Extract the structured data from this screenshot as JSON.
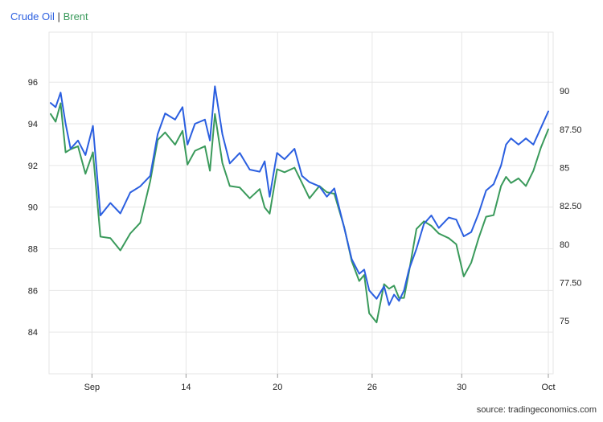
{
  "legend": {
    "series_a": "Crude Oil",
    "separator": "|",
    "series_b": "Brent"
  },
  "source": "source: tradingeconomics.com",
  "chart_data": {
    "type": "line",
    "title": "",
    "xlabel": "",
    "ylabel": "",
    "grid": true,
    "legend_position": "top-left",
    "x_ticks": [
      "Sep",
      "14",
      "20",
      "26",
      "30",
      "Oct"
    ],
    "x_tick_positions": [
      0.083,
      0.272,
      0.456,
      0.646,
      0.826,
      1.0
    ],
    "x_range": [
      0,
      1
    ],
    "y_left": {
      "min": 82.0,
      "max": 98.4,
      "ticks": [
        84,
        86,
        88,
        90,
        92,
        94,
        96
      ],
      "labels": [
        "84",
        "86",
        "88",
        "90",
        "92",
        "94",
        "96"
      ]
    },
    "y_right": {
      "min": 71.55,
      "max": 93.84,
      "ticks": [
        75,
        77.5,
        80,
        82.5,
        85,
        87.5,
        90
      ],
      "labels": [
        "75",
        "77.50",
        "80",
        "82.50",
        "85",
        "87.50",
        "90"
      ]
    },
    "series": [
      {
        "name": "Crude Oil",
        "axis": "left",
        "color": "#2b5fe0",
        "x": [
          0,
          0.01,
          0.02,
          0.03,
          0.04,
          0.055,
          0.07,
          0.085,
          0.1,
          0.12,
          0.14,
          0.16,
          0.18,
          0.2,
          0.215,
          0.23,
          0.25,
          0.265,
          0.275,
          0.29,
          0.31,
          0.32,
          0.33,
          0.345,
          0.36,
          0.38,
          0.4,
          0.42,
          0.43,
          0.44,
          0.455,
          0.47,
          0.49,
          0.505,
          0.52,
          0.54,
          0.555,
          0.57,
          0.59,
          0.605,
          0.62,
          0.63,
          0.64,
          0.655,
          0.67,
          0.68,
          0.69,
          0.7,
          0.71,
          0.72,
          0.735,
          0.75,
          0.765,
          0.78,
          0.8,
          0.815,
          0.83,
          0.845,
          0.86,
          0.875,
          0.89,
          0.905,
          0.915,
          0.925,
          0.94,
          0.955,
          0.97,
          0.985,
          1.0
        ],
        "values": [
          95.0,
          94.8,
          95.5,
          94.0,
          92.8,
          93.2,
          92.5,
          93.9,
          89.6,
          90.2,
          89.7,
          90.7,
          91.0,
          91.5,
          93.5,
          94.5,
          94.2,
          94.8,
          93.0,
          94.0,
          94.2,
          93.2,
          95.8,
          93.5,
          92.1,
          92.6,
          91.8,
          91.7,
          92.2,
          90.5,
          92.6,
          92.3,
          92.8,
          91.5,
          91.2,
          91.0,
          90.5,
          90.9,
          89.0,
          87.5,
          86.8,
          87.0,
          86.0,
          85.6,
          86.2,
          85.3,
          85.8,
          85.5,
          86.0,
          87.0,
          88.0,
          89.2,
          89.6,
          89.0,
          89.5,
          89.4,
          88.6,
          88.8,
          89.7,
          90.8,
          91.1,
          92.0,
          93.0,
          93.3,
          93.0,
          93.3,
          93.0,
          93.8,
          94.6
        ]
      },
      {
        "name": "Brent",
        "axis": "right",
        "color": "#3a9a5b",
        "x": [
          0,
          0.01,
          0.02,
          0.03,
          0.04,
          0.055,
          0.07,
          0.085,
          0.1,
          0.12,
          0.14,
          0.16,
          0.18,
          0.2,
          0.215,
          0.23,
          0.25,
          0.265,
          0.275,
          0.29,
          0.31,
          0.32,
          0.33,
          0.345,
          0.36,
          0.38,
          0.4,
          0.42,
          0.43,
          0.44,
          0.455,
          0.47,
          0.49,
          0.505,
          0.52,
          0.54,
          0.555,
          0.57,
          0.59,
          0.605,
          0.62,
          0.63,
          0.64,
          0.655,
          0.67,
          0.68,
          0.69,
          0.7,
          0.71,
          0.72,
          0.735,
          0.75,
          0.765,
          0.78,
          0.8,
          0.815,
          0.83,
          0.845,
          0.86,
          0.875,
          0.89,
          0.905,
          0.915,
          0.925,
          0.94,
          0.955,
          0.97,
          0.985,
          1.0
        ],
        "values": [
          88.5,
          88.0,
          89.2,
          86.0,
          86.2,
          86.4,
          84.6,
          86.0,
          80.5,
          80.4,
          79.6,
          80.7,
          81.4,
          84.1,
          86.8,
          87.3,
          86.5,
          87.4,
          85.2,
          86.1,
          86.4,
          84.8,
          88.5,
          85.3,
          83.8,
          83.7,
          83.0,
          83.6,
          82.4,
          82.0,
          84.9,
          84.7,
          85.0,
          84.0,
          83.0,
          83.8,
          83.4,
          83.3,
          81.1,
          78.9,
          77.6,
          78.0,
          75.5,
          74.9,
          77.4,
          77.1,
          77.3,
          76.5,
          76.5,
          78.2,
          81.0,
          81.5,
          81.2,
          80.7,
          80.4,
          80.0,
          77.9,
          78.8,
          80.4,
          81.8,
          81.9,
          83.8,
          84.4,
          84.0,
          84.3,
          83.8,
          84.8,
          86.3,
          87.5
        ]
      }
    ]
  }
}
